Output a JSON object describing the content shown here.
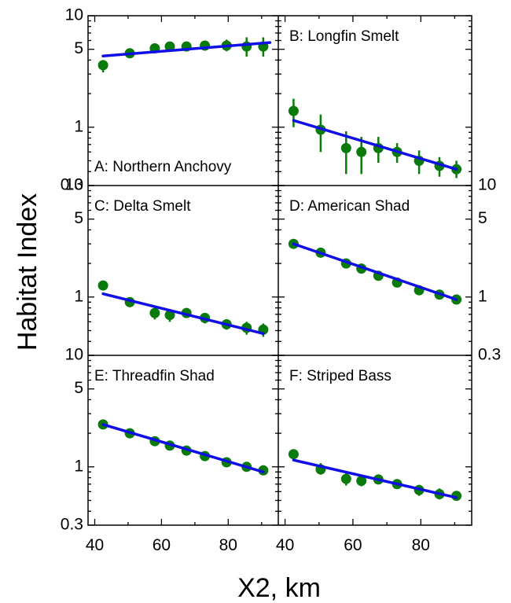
{
  "figure": {
    "ylabel": "Habitat Index",
    "xlabel": "X2, km",
    "x_ticks": [
      40,
      60,
      80
    ],
    "y_tick_labels": [
      "0.3",
      "1",
      "5",
      "10"
    ],
    "y_tick_values": [
      0.3,
      1,
      5,
      10
    ]
  },
  "colors": {
    "marker": "#0a7a0a",
    "line": "#1010e6",
    "axes": "#000000"
  },
  "chart_data": [
    {
      "type": "scatter",
      "label": "A: Northern Anchovy",
      "x": [
        42.5,
        50.5,
        58,
        62.5,
        67.5,
        73,
        79.5,
        85.5,
        90.5
      ],
      "y": [
        3.6,
        4.6,
        5.1,
        5.3,
        5.3,
        5.4,
        5.4,
        5.3,
        5.3
      ],
      "err_low": [
        3.1,
        4.3,
        4.8,
        5.0,
        4.9,
        4.9,
        4.8,
        4.3,
        4.3
      ],
      "err_high": [
        4.0,
        4.9,
        5.4,
        5.6,
        5.7,
        5.9,
        6.1,
        6.4,
        6.4
      ],
      "fit_x": [
        42.5,
        92.5
      ],
      "fit_y": [
        4.35,
        5.75
      ],
      "ylim": [
        0.3,
        10
      ],
      "xlim": [
        38,
        95
      ],
      "yscale": "log"
    },
    {
      "type": "scatter",
      "label": "B: Longfin Smelt",
      "x": [
        42.5,
        50.5,
        58,
        62.5,
        67.5,
        73,
        79.5,
        85.5,
        90.5
      ],
      "y": [
        1.4,
        0.95,
        0.65,
        0.6,
        0.65,
        0.6,
        0.5,
        0.45,
        0.42
      ],
      "err_low": [
        1.0,
        0.6,
        0.38,
        0.38,
        0.48,
        0.48,
        0.38,
        0.36,
        0.35
      ],
      "err_high": [
        1.8,
        1.3,
        0.92,
        0.82,
        0.82,
        0.72,
        0.62,
        0.54,
        0.5
      ],
      "fit_x": [
        42.5,
        90.5
      ],
      "fit_y": [
        1.15,
        0.42
      ],
      "ylim": [
        0.3,
        10
      ],
      "xlim": [
        38,
        95
      ],
      "yscale": "log"
    },
    {
      "type": "scatter",
      "label": "C: Delta Smelt",
      "x": [
        42.5,
        50.5,
        58,
        62.5,
        67.5,
        73,
        79.5,
        85.5,
        90.5
      ],
      "y": [
        1.27,
        0.9,
        0.72,
        0.69,
        0.72,
        0.65,
        0.57,
        0.53,
        0.51
      ],
      "err_low": [
        1.17,
        0.81,
        0.63,
        0.6,
        0.65,
        0.58,
        0.51,
        0.46,
        0.44
      ],
      "err_high": [
        1.38,
        0.99,
        0.82,
        0.78,
        0.79,
        0.72,
        0.63,
        0.6,
        0.58
      ],
      "fit_x": [
        42.5,
        90.5
      ],
      "fit_y": [
        1.07,
        0.47
      ],
      "ylim": [
        0.3,
        10
      ],
      "xlim": [
        38,
        95
      ],
      "yscale": "log"
    },
    {
      "type": "scatter",
      "label": "D: American Shad",
      "x": [
        42.5,
        50.5,
        58,
        62.5,
        67.5,
        73,
        79.5,
        85.5,
        90.5
      ],
      "y": [
        3.0,
        2.5,
        2.0,
        1.8,
        1.55,
        1.35,
        1.15,
        1.05,
        0.95
      ],
      "err_low": [
        2.9,
        2.42,
        1.93,
        1.73,
        1.49,
        1.3,
        1.1,
        1.0,
        0.9
      ],
      "err_high": [
        3.1,
        2.58,
        2.07,
        1.87,
        1.61,
        1.4,
        1.2,
        1.1,
        1.0
      ],
      "fit_x": [
        42.5,
        90.5
      ],
      "fit_y": [
        3.0,
        0.95
      ],
      "ylim": [
        0.3,
        10
      ],
      "xlim": [
        38,
        95
      ],
      "yscale": "log"
    },
    {
      "type": "scatter",
      "label": "E: Threadfin Shad",
      "x": [
        42.5,
        50.5,
        58,
        62.5,
        67.5,
        73,
        79.5,
        85.5,
        90.5
      ],
      "y": [
        2.4,
        2.0,
        1.7,
        1.55,
        1.4,
        1.25,
        1.1,
        1.0,
        0.93
      ],
      "err_low": [
        2.32,
        1.93,
        1.64,
        1.49,
        1.35,
        1.2,
        1.06,
        0.96,
        0.89
      ],
      "err_high": [
        2.48,
        2.07,
        1.76,
        1.61,
        1.45,
        1.3,
        1.14,
        1.04,
        0.97
      ],
      "fit_x": [
        42.5,
        90.5
      ],
      "fit_y": [
        2.4,
        0.9
      ],
      "ylim": [
        0.3,
        10
      ],
      "xlim": [
        38,
        95
      ],
      "yscale": "log"
    },
    {
      "type": "scatter",
      "label": "F: Striped Bass",
      "x": [
        42.5,
        50.5,
        58,
        62.5,
        67.5,
        73,
        79.5,
        85.5,
        90.5
      ],
      "y": [
        1.3,
        0.95,
        0.78,
        0.75,
        0.77,
        0.7,
        0.62,
        0.57,
        0.55
      ],
      "err_low": [
        1.2,
        0.85,
        0.68,
        0.67,
        0.7,
        0.64,
        0.55,
        0.51,
        0.5
      ],
      "err_high": [
        1.42,
        1.08,
        0.88,
        0.84,
        0.85,
        0.77,
        0.69,
        0.64,
        0.6
      ],
      "fit_x": [
        42.5,
        90.5
      ],
      "fit_y": [
        1.15,
        0.53
      ],
      "ylim": [
        0.3,
        10
      ],
      "xlim": [
        38,
        95
      ],
      "yscale": "log"
    }
  ]
}
